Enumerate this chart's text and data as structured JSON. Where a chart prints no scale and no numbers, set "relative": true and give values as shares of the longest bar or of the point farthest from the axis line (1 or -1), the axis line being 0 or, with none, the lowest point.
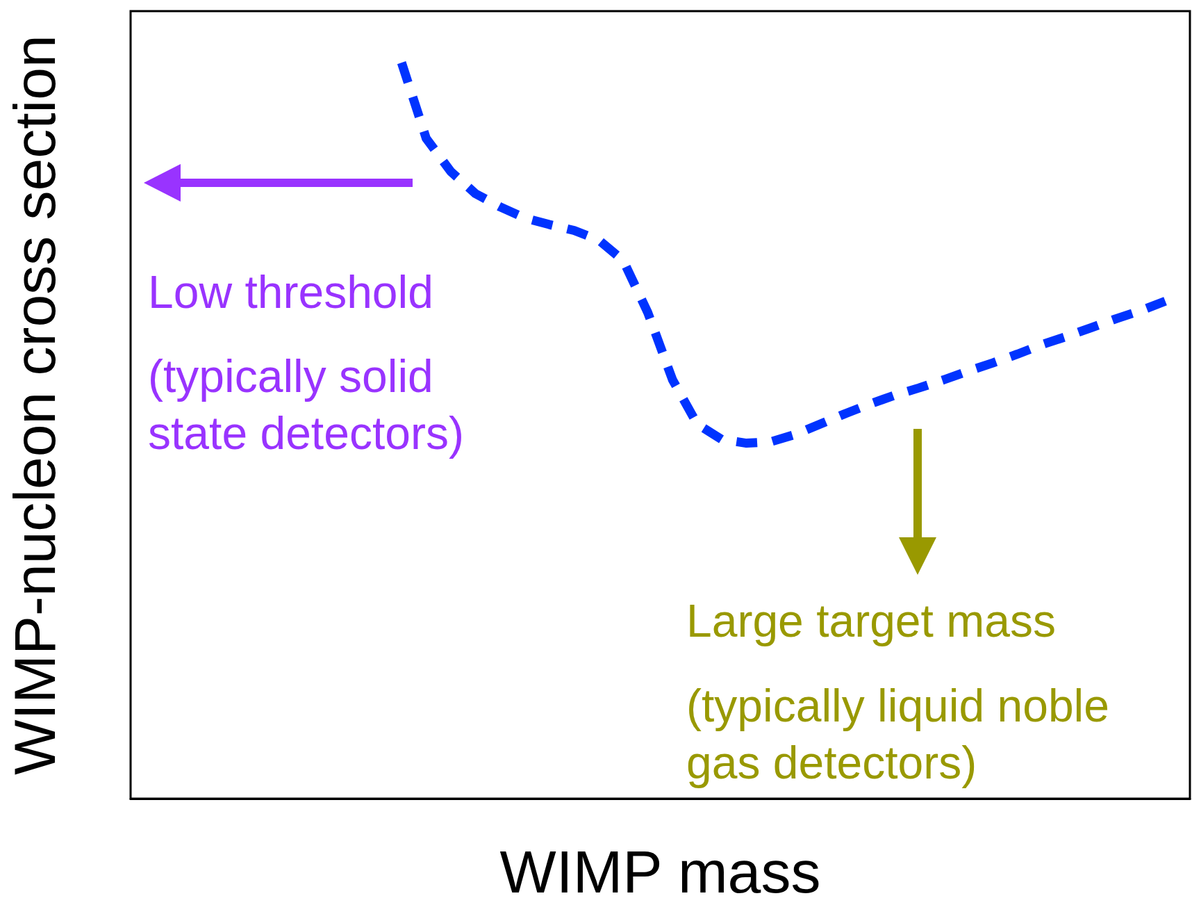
{
  "chart_data": {
    "type": "line",
    "relative": true,
    "xlabel": "WIMP mass",
    "ylabel": "WIMP-nucleon cross section",
    "categories": [
      null,
      null,
      null,
      null,
      null,
      null,
      null,
      null,
      null,
      null,
      null,
      null,
      null,
      null,
      null,
      null,
      null,
      null,
      null,
      null,
      null,
      null,
      null,
      null,
      null,
      null,
      null,
      null,
      null,
      null,
      null,
      null,
      null,
      null,
      null,
      null,
      null,
      null,
      null,
      null,
      null,
      null,
      null,
      null
    ],
    "series": [
      {
        "color": "#0033ff",
        "values": [
          null,
          null,
          null,
          null,
          null,
          null,
          null,
          null,
          null,
          null,
          null,
          1.0,
          0.897,
          0.852,
          0.822,
          0.804,
          0.789,
          0.78,
          0.772,
          0.759,
          0.731,
          0.66,
          0.569,
          0.509,
          0.488,
          0.483,
          0.485,
          0.495,
          0.509,
          0.523,
          0.536,
          0.548,
          0.558,
          0.569,
          0.581,
          0.592,
          0.604,
          0.617,
          0.628,
          0.64,
          0.652,
          0.663,
          0.676,
          null
        ]
      }
    ],
    "line_style": "dashed",
    "marker": "none",
    "annotations": [
      "Low threshold",
      "(typically solid state detectors)",
      "Large target mass",
      "(typically liquid noble gas detectors)"
    ]
  }
}
